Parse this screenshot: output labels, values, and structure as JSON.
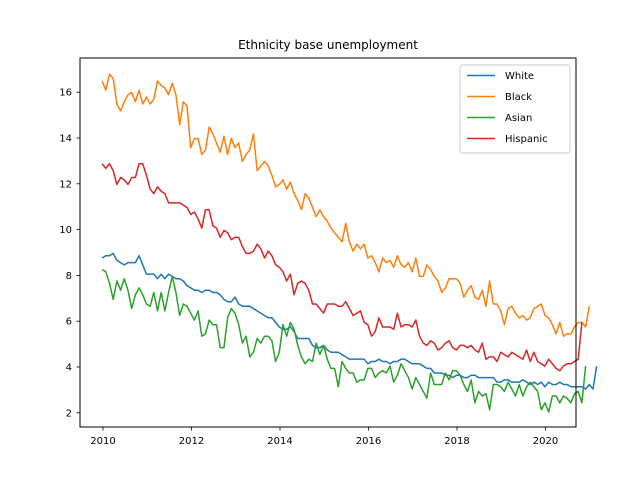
{
  "chart_data": {
    "type": "line",
    "title": "Ethnicity base unemployment",
    "xlabel": "",
    "ylabel": "",
    "xlim": [
      2009.5,
      2020.7
    ],
    "ylim": [
      1.45,
      17.5
    ],
    "x_ticks": [
      2010,
      2012,
      2014,
      2016,
      2018,
      2020
    ],
    "x_tick_labels": [
      "2010",
      "2012",
      "2014",
      "2016",
      "2018",
      "2020"
    ],
    "y_ticks": [
      2,
      4,
      6,
      8,
      10,
      12,
      14,
      16
    ],
    "y_tick_labels": [
      "2",
      "4",
      "6",
      "8",
      "10",
      "12",
      "14",
      "16"
    ],
    "legend_position": "top-right",
    "grid": false,
    "x_start": 2010.0,
    "x_step": 0.0833333,
    "series": [
      {
        "name": "White",
        "color": "#1f77b4",
        "values": [
          8.8,
          8.9,
          8.9,
          9.0,
          8.7,
          8.6,
          8.5,
          8.6,
          8.6,
          8.6,
          8.9,
          8.5,
          8.1,
          8.1,
          8.1,
          7.9,
          8.1,
          7.9,
          8.1,
          8.0,
          7.9,
          7.9,
          7.8,
          7.6,
          7.5,
          7.4,
          7.4,
          7.3,
          7.4,
          7.4,
          7.3,
          7.3,
          7.2,
          7.0,
          6.9,
          6.9,
          7.1,
          6.8,
          6.7,
          6.7,
          6.7,
          6.6,
          6.5,
          6.4,
          6.3,
          6.2,
          6.2,
          6.0,
          5.8,
          5.7,
          5.7,
          5.8,
          5.6,
          5.3,
          5.3,
          5.3,
          5.3,
          5.0,
          4.9,
          4.9,
          5.0,
          4.8,
          4.7,
          4.7,
          4.7,
          4.6,
          4.5,
          4.4,
          4.4,
          4.4,
          4.4,
          4.4,
          4.2,
          4.3,
          4.3,
          4.4,
          4.3,
          4.3,
          4.2,
          4.3,
          4.3,
          4.4,
          4.4,
          4.3,
          4.2,
          4.2,
          4.2,
          4.1,
          4.0,
          4.0,
          3.8,
          3.8,
          3.8,
          3.7,
          3.7,
          3.6,
          3.7,
          3.7,
          3.6,
          3.6,
          3.7,
          3.7,
          3.6,
          3.6,
          3.6,
          3.6,
          3.6,
          3.4,
          3.4,
          3.5,
          3.5,
          3.4,
          3.4,
          3.4,
          3.5,
          3.4,
          3.3,
          3.4,
          3.3,
          3.4,
          3.2,
          3.4,
          3.3,
          3.3,
          3.4,
          3.3,
          3.3,
          3.2,
          3.2,
          3.2,
          3.2,
          3.1,
          3.3,
          3.1,
          4.1
        ]
      },
      {
        "name": "Black",
        "color": "#ff7f0e",
        "values": [
          16.5,
          16.1,
          16.8,
          16.6,
          15.5,
          15.2,
          15.6,
          15.9,
          16.0,
          15.6,
          16.1,
          15.5,
          15.8,
          15.5,
          15.7,
          16.5,
          16.3,
          16.2,
          15.9,
          16.4,
          15.9,
          14.6,
          15.6,
          15.4,
          13.6,
          14.0,
          14.0,
          13.3,
          13.5,
          14.5,
          14.2,
          13.8,
          13.4,
          14.1,
          13.3,
          14.0,
          13.6,
          13.8,
          13.0,
          13.3,
          13.5,
          14.2,
          12.6,
          12.8,
          13.0,
          12.8,
          12.4,
          11.9,
          12.0,
          12.2,
          11.8,
          12.1,
          11.6,
          11.3,
          10.9,
          11.6,
          11.4,
          11.0,
          10.6,
          10.9,
          10.6,
          10.4,
          10.1,
          9.9,
          9.7,
          9.5,
          10.3,
          9.5,
          9.1,
          9.4,
          9.2,
          9.4,
          8.8,
          8.9,
          8.6,
          8.2,
          8.8,
          8.6,
          8.7,
          8.4,
          8.9,
          8.5,
          8.4,
          8.6,
          8.2,
          8.8,
          8.0,
          8.0,
          8.5,
          8.3,
          8.0,
          7.8,
          7.3,
          7.5,
          7.9,
          7.9,
          7.9,
          7.7,
          7.1,
          7.4,
          7.6,
          7.1,
          7.0,
          7.4,
          6.7,
          7.8,
          6.8,
          6.8,
          6.5,
          5.9,
          6.6,
          6.7,
          6.4,
          6.2,
          6.3,
          6.1,
          6.2,
          6.6,
          6.7,
          6.8,
          6.3,
          6.2,
          5.9,
          5.5,
          6.0,
          5.4,
          5.5,
          5.5,
          5.8,
          6.0,
          6.0,
          5.8,
          6.7
        ]
      },
      {
        "name": "Asian",
        "color": "#2ca02c",
        "values": [
          8.3,
          8.2,
          7.7,
          7.0,
          7.8,
          7.4,
          7.9,
          7.4,
          6.6,
          7.2,
          7.5,
          7.2,
          6.8,
          6.7,
          7.3,
          6.5,
          7.3,
          6.5,
          7.3,
          8.0,
          7.3,
          6.3,
          6.8,
          6.7,
          6.4,
          6.1,
          6.5,
          5.4,
          5.5,
          6.1,
          5.9,
          5.9,
          4.9,
          4.9,
          6.2,
          6.6,
          6.4,
          5.9,
          5.1,
          5.4,
          4.5,
          4.7,
          5.3,
          5.1,
          5.4,
          5.4,
          5.2,
          4.3,
          4.7,
          5.9,
          5.4,
          6.0,
          5.7,
          5.0,
          4.5,
          4.2,
          4.4,
          4.3,
          5.1,
          4.6,
          5.0,
          4.4,
          4.0,
          4.0,
          3.2,
          4.3,
          4.0,
          3.8,
          3.8,
          3.4,
          3.5,
          3.5,
          4.0,
          4.0,
          3.6,
          3.8,
          3.9,
          3.8,
          4.1,
          3.4,
          3.7,
          4.2,
          3.9,
          3.6,
          3.1,
          3.6,
          3.3,
          3.0,
          2.7,
          3.8,
          3.3,
          3.3,
          3.3,
          3.8,
          3.5,
          3.9,
          3.9,
          3.7,
          3.3,
          3.0,
          3.5,
          2.5,
          3.0,
          2.8,
          2.9,
          2.2,
          3.3,
          3.3,
          3.2,
          3.0,
          3.4,
          3.1,
          2.8,
          3.3,
          2.8,
          3.2,
          3.4,
          3.2,
          3.0,
          2.2,
          2.5,
          2.1,
          2.8,
          2.8,
          2.5,
          2.8,
          2.7,
          2.5,
          2.9,
          3.0,
          2.5,
          4.1
        ]
      },
      {
        "name": "Hispanic",
        "color": "#d62728",
        "values": [
          12.9,
          12.7,
          12.9,
          12.6,
          12.0,
          12.3,
          12.2,
          12.0,
          12.3,
          12.3,
          12.9,
          12.9,
          12.4,
          11.8,
          11.6,
          11.9,
          11.7,
          11.6,
          11.2,
          11.2,
          11.2,
          11.2,
          11.1,
          11.0,
          10.7,
          10.8,
          10.5,
          10.1,
          10.9,
          10.9,
          10.2,
          10.1,
          9.7,
          10.0,
          9.9,
          9.6,
          9.7,
          9.7,
          9.3,
          9.0,
          9.0,
          9.1,
          9.4,
          9.2,
          8.8,
          9.1,
          8.9,
          8.5,
          8.4,
          8.2,
          7.8,
          8.1,
          7.2,
          7.7,
          7.8,
          7.7,
          7.4,
          6.8,
          6.8,
          6.6,
          6.4,
          6.8,
          6.8,
          6.8,
          6.7,
          6.7,
          6.9,
          6.6,
          6.3,
          6.4,
          6.5,
          6.0,
          5.9,
          5.4,
          5.6,
          6.2,
          5.8,
          5.8,
          5.8,
          5.7,
          6.4,
          5.8,
          5.9,
          5.9,
          5.8,
          6.1,
          5.4,
          5.1,
          5.0,
          5.2,
          5.1,
          4.8,
          4.9,
          5.1,
          5.2,
          4.9,
          4.8,
          5.0,
          5.0,
          4.9,
          5.0,
          4.8,
          4.7,
          5.1,
          4.4,
          4.5,
          4.5,
          4.3,
          4.7,
          4.6,
          4.5,
          4.7,
          4.6,
          4.5,
          4.4,
          4.8,
          4.3,
          4.7,
          4.3,
          4.2,
          4.1,
          4.4,
          4.2,
          4.0,
          3.9,
          4.1,
          4.2,
          4.2,
          4.3,
          4.4,
          6.0
        ]
      }
    ]
  }
}
